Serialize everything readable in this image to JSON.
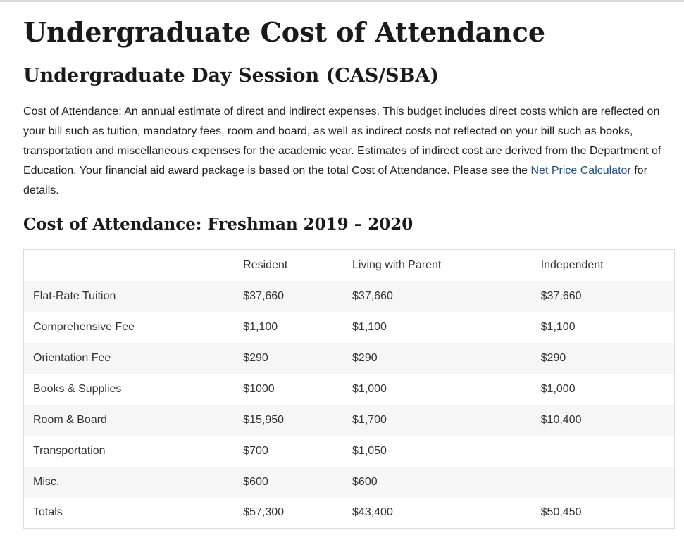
{
  "page": {
    "title": "Undergraduate Cost of Attendance",
    "section_title": "Undergraduate Day Session (CAS/SBA)",
    "intro": {
      "text_before_link": "Cost of Attendance: An annual estimate of direct and indirect expenses. This budget includes direct costs which are reflected on your bill such as tuition, mandatory fees, room and board, as well as indirect costs not reflected on your bill such as books, transportation and miscellaneous expenses for the academic year. Estimates of indirect cost are derived from the Department of Education. Your financial aid award package is based on the total Cost of Attendance. Please see the ",
      "link_text": "Net Price Calculator",
      "text_after_link": " for details."
    },
    "link_color": "#1f4e8c"
  },
  "table": {
    "title": "Cost of Attendance: Freshman 2019 – 2020",
    "headers": [
      "",
      "Resident",
      "Living with Parent",
      "Independent"
    ],
    "rows": [
      [
        "Flat-Rate Tuition",
        "$37,660",
        "$37,660",
        "$37,660"
      ],
      [
        "Comprehensive Fee",
        "$1,100",
        "$1,100",
        "$1,100"
      ],
      [
        "Orientation Fee",
        "$290",
        "$290",
        "$290"
      ],
      [
        "Books & Supplies",
        "$1000",
        "$1,000",
        "$1,000"
      ],
      [
        "Room & Board",
        "$15,950",
        "$1,700",
        "$10,400"
      ],
      [
        "Transportation",
        "$700",
        "$1,050",
        ""
      ],
      [
        "Misc.",
        "$600",
        "$600",
        ""
      ],
      [
        "Totals",
        "$57,300",
        "$43,400",
        "$50,450"
      ]
    ]
  }
}
